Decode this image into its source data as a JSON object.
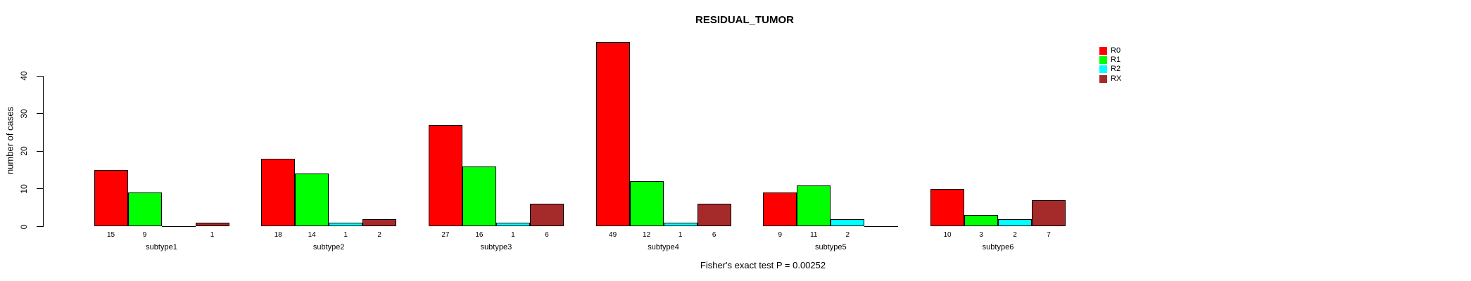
{
  "chart_data": {
    "type": "bar",
    "grouped": true,
    "title": "RESIDUAL_TUMOR",
    "xlabel": "",
    "ylabel": "number of cases",
    "categories": [
      "subtype1",
      "subtype2",
      "subtype3",
      "subtype4",
      "subtype5",
      "subtype6"
    ],
    "series": [
      {
        "name": "R0",
        "color": "#FF0000",
        "values": [
          15,
          18,
          27,
          49,
          9,
          10
        ]
      },
      {
        "name": "R1",
        "color": "#00FF00",
        "values": [
          9,
          14,
          16,
          12,
          11,
          3
        ]
      },
      {
        "name": "R2",
        "color": "#00FFFF",
        "values": [
          0,
          1,
          1,
          1,
          2,
          2
        ]
      },
      {
        "name": "RX",
        "color": "#A52A2A",
        "values": [
          1,
          2,
          6,
          6,
          0,
          7
        ]
      }
    ],
    "yticks": [
      0,
      10,
      20,
      30,
      40
    ],
    "ylim": [
      0,
      40
    ],
    "grid": false,
    "bar_value_labels_shown": true,
    "zero_value_labels_hidden": true,
    "legend_position": "right",
    "annotation": "Fisher's exact test P = 0.00252"
  }
}
